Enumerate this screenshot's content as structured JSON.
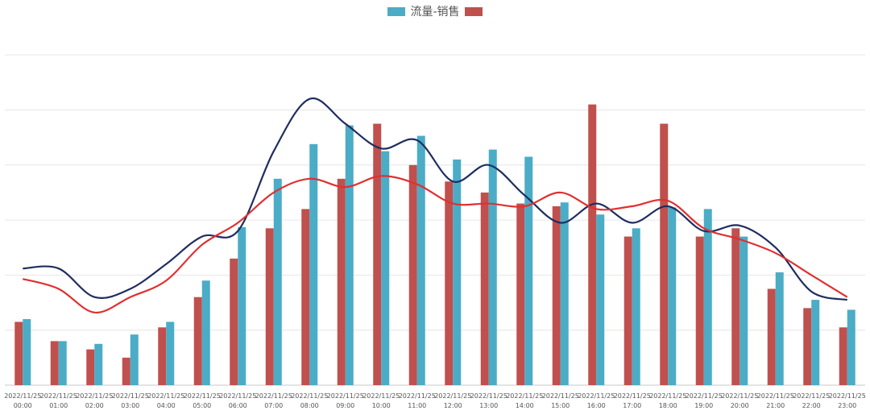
{
  "chart_data": {
    "type": "bar",
    "legend": {
      "label": "流量-销售",
      "placement": "top-center"
    },
    "categories": [
      [
        "2022/11/25",
        "00:00"
      ],
      [
        "2022/11/25",
        "01:00"
      ],
      [
        "2022/11/25",
        "02:00"
      ],
      [
        "2022/11/25",
        "03:00"
      ],
      [
        "2022/11/25",
        "04:00"
      ],
      [
        "2022/11/25",
        "05:00"
      ],
      [
        "2022/11/25",
        "06:00"
      ],
      [
        "2022/11/25",
        "07:00"
      ],
      [
        "2022/11/25",
        "08:00"
      ],
      [
        "2022/11/25",
        "09:00"
      ],
      [
        "2022/11/25",
        "10:00"
      ],
      [
        "2022/11/25",
        "11:00"
      ],
      [
        "2022/11/25",
        "12:00"
      ],
      [
        "2022/11/25",
        "13:00"
      ],
      [
        "2022/11/25",
        "14:00"
      ],
      [
        "2022/11/25",
        "15:00"
      ],
      [
        "2022/11/25",
        "16:00"
      ],
      [
        "2022/11/25",
        "17:00"
      ],
      [
        "2022/11/25",
        "18:00"
      ],
      [
        "2022/11/25",
        "19:00"
      ],
      [
        "2022/11/25",
        "20:00"
      ],
      [
        "2022/11/25",
        "21:00"
      ],
      [
        "2022/11/25",
        "22:00"
      ],
      [
        "2022/11/25",
        "23:00"
      ]
    ],
    "series": [
      {
        "kind": "bar",
        "color": "#c0504d",
        "values": [
          1.15,
          0.8,
          0.65,
          0.5,
          1.05,
          1.6,
          2.3,
          2.85,
          3.2,
          3.75,
          4.75,
          4.0,
          3.7,
          3.5,
          3.3,
          3.25,
          5.1,
          2.7,
          4.75,
          2.7,
          2.85,
          1.75,
          1.4,
          1.05
        ]
      },
      {
        "kind": "bar",
        "color": "#4bacc6",
        "values": [
          1.2,
          0.8,
          0.75,
          0.92,
          1.15,
          1.9,
          2.87,
          3.75,
          4.38,
          4.72,
          4.25,
          4.53,
          4.1,
          4.28,
          4.15,
          3.32,
          3.1,
          2.85,
          3.23,
          3.2,
          2.7,
          2.05,
          1.55,
          1.37
        ]
      },
      {
        "kind": "line",
        "color": "#1f2d5f",
        "values": [
          2.12,
          2.12,
          1.6,
          1.75,
          2.2,
          2.7,
          2.8,
          4.25,
          5.2,
          4.75,
          4.3,
          4.45,
          3.7,
          4.0,
          3.45,
          2.95,
          3.3,
          2.95,
          3.25,
          2.8,
          2.9,
          2.5,
          1.7,
          1.55
        ]
      },
      {
        "kind": "line",
        "color": "#e03030",
        "values": [
          1.93,
          1.75,
          1.32,
          1.6,
          1.9,
          2.55,
          2.95,
          3.5,
          3.75,
          3.6,
          3.8,
          3.65,
          3.3,
          3.3,
          3.25,
          3.5,
          3.2,
          3.25,
          3.35,
          2.85,
          2.65,
          2.4,
          2.0,
          1.6
        ]
      }
    ],
    "ylim": [
      0,
      6.5
    ],
    "grid": true,
    "ytick_step": 1,
    "xlabel": "",
    "ylabel": ""
  }
}
